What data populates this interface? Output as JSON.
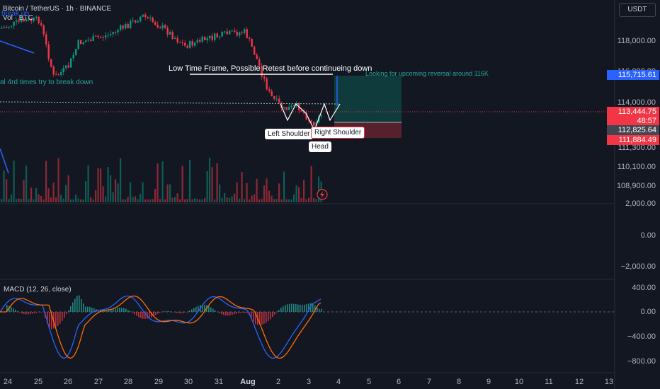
{
  "header": {
    "symbol": "Bitcoin / TetherUS · 1h · BINANCE",
    "volume_label": "Vol · BTC",
    "broken_label": "break up"
  },
  "currency_button": "USDT",
  "price_axis": [
    "118,000.00",
    "116,000.00",
    "114,000.00",
    "111,300.00",
    "110,100.00",
    "108,900.00"
  ],
  "price_tags": {
    "target": "115,715.61",
    "current": "113,444.75",
    "countdown": "48:57",
    "mid": "112,825.64",
    "stop": "111,884.49"
  },
  "indicator_axis": [
    "2,000.00",
    "0.00",
    "−2,000.00"
  ],
  "macd": {
    "label": "MACD (12, 26, close)",
    "axis": [
      "400.00",
      "0.00",
      "−400.00",
      "−800.00"
    ]
  },
  "dates": [
    "24",
    "25",
    "26",
    "27",
    "28",
    "29",
    "30",
    "31",
    "Aug",
    "2",
    "3",
    "4",
    "5",
    "6",
    "7",
    "8",
    "9",
    "10",
    "11",
    "12",
    "13"
  ],
  "annotations": {
    "retest": "Low Time Frame, Possible Retest before continueing down",
    "reversal": "Looking for upcoming reversal around 116K",
    "breakdown": "al 4rd times try to break down",
    "left_shoulder": "Left Shoulder",
    "head": "Head",
    "right_shoulder": "Right Shoulder"
  },
  "colors": {
    "bg": "#131722",
    "up": "#089981",
    "down": "#f23645",
    "tag_blue": "#2962ff"
  }
}
